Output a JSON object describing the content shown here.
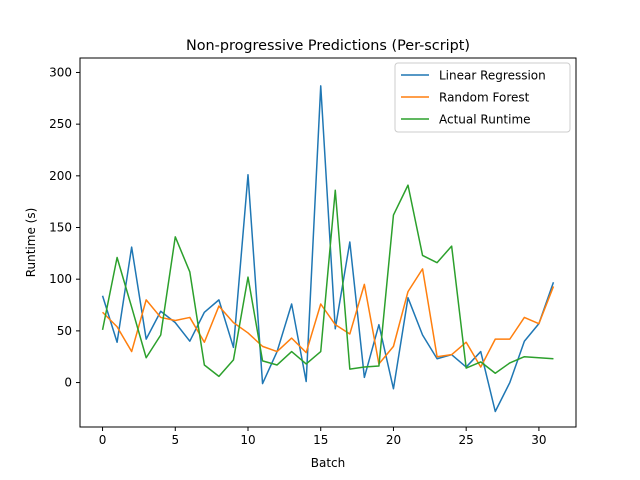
{
  "chart_data": {
    "type": "line",
    "title": "Non-progressive Predictions (Per-script)",
    "xlabel": "Batch",
    "ylabel": "Runtime (s)",
    "xlim": [
      -1.55,
      32.55
    ],
    "ylim": [
      -43,
      314
    ],
    "xticks": [
      0,
      5,
      10,
      15,
      20,
      25,
      30
    ],
    "yticks": [
      0,
      50,
      100,
      150,
      200,
      250,
      300
    ],
    "grid": false,
    "legend_position": "top-right",
    "x": [
      0,
      1,
      2,
      3,
      4,
      5,
      6,
      7,
      8,
      9,
      10,
      11,
      12,
      13,
      14,
      15,
      16,
      17,
      18,
      19,
      20,
      21,
      22,
      23,
      24,
      25,
      26,
      27,
      28,
      29,
      30,
      31
    ],
    "series": [
      {
        "name": "Linear Regression",
        "color": "#1f77b4",
        "values": [
          84,
          39,
          131,
          42,
          69,
          58,
          40,
          68,
          80,
          34,
          201,
          -1,
          30,
          76,
          1,
          287,
          52,
          136,
          5,
          56,
          -6,
          82,
          46,
          23,
          27,
          15,
          30,
          -28,
          0,
          40,
          57,
          97
        ]
      },
      {
        "name": "Random Forest",
        "color": "#ff7f0e",
        "values": [
          68,
          54,
          30,
          80,
          63,
          60,
          63,
          39,
          74,
          58,
          48,
          35,
          30,
          43,
          29,
          76,
          56,
          47,
          95,
          18,
          35,
          88,
          110,
          25,
          27,
          39,
          15,
          42,
          42,
          63,
          57,
          93
        ]
      },
      {
        "name": "Actual Runtime",
        "color": "#2ca02c",
        "values": [
          51,
          121,
          73,
          24,
          46,
          141,
          107,
          17,
          6,
          22,
          102,
          21,
          17,
          30,
          18,
          30,
          186,
          13,
          15,
          16,
          162,
          191,
          123,
          116,
          132,
          14,
          20,
          9,
          19,
          25,
          24,
          23
        ]
      }
    ]
  }
}
